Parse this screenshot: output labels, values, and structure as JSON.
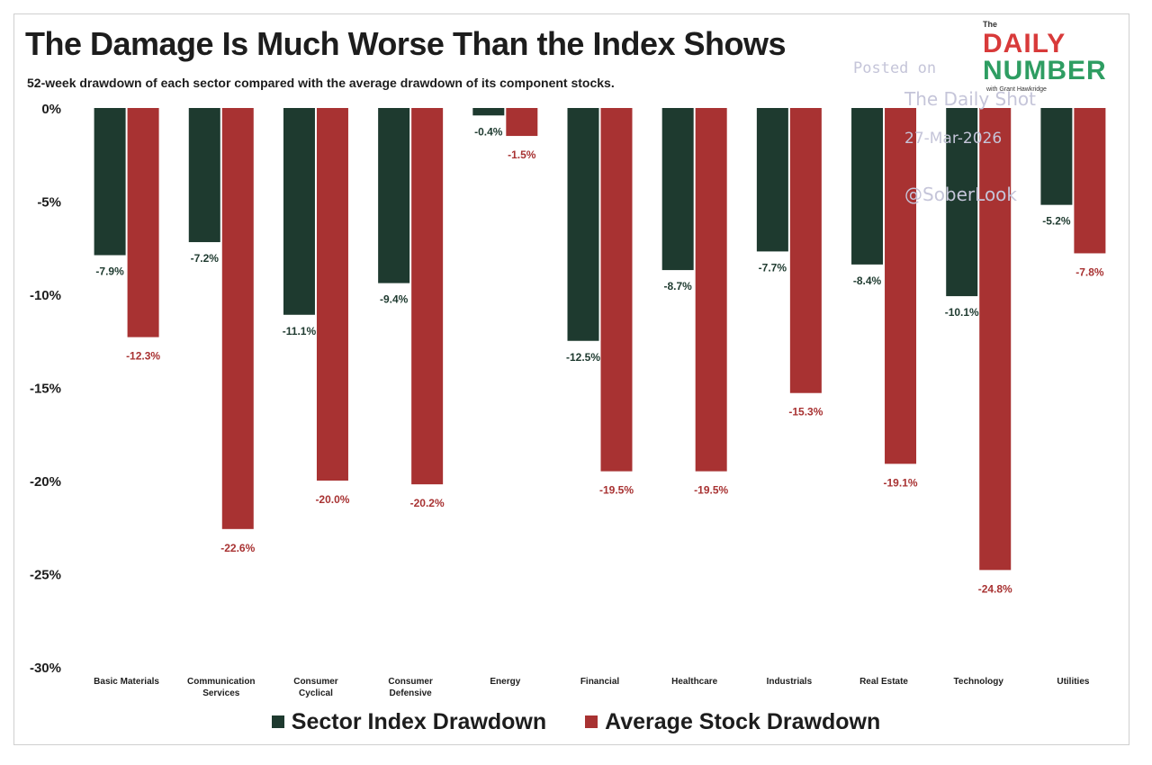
{
  "header": {
    "title": "The Damage Is Much Worse Than the Index Shows",
    "subtitle": "52-week drawdown of each sector compared with the average drawdown of its component stocks."
  },
  "logo": {
    "the": "The",
    "daily": "DAILY",
    "number": "NUMBER",
    "with": "with Grant Hawkridge"
  },
  "watermark": {
    "line1": "Posted on",
    "line2": "The Daily Shot",
    "line3": "27-Mar-2026",
    "line4": "@SoberLook"
  },
  "colors": {
    "sector": "#1e3a2f",
    "stock": "#a83232",
    "sector_label": "#1e3a2f",
    "stock_label": "#a83232"
  },
  "chart_data": {
    "type": "bar",
    "title": "The Damage Is Much Worse Than the Index Shows",
    "subtitle": "52-week drawdown of each sector compared with the average drawdown of its component stocks.",
    "xlabel": "",
    "ylabel": "",
    "ylim": [
      -30,
      0
    ],
    "yticks": [
      0,
      -5,
      -10,
      -15,
      -20,
      -25,
      -30
    ],
    "ytick_labels": [
      "0%",
      "-5%",
      "-10%",
      "-15%",
      "-20%",
      "-25%",
      "-30%"
    ],
    "grid": false,
    "legend_position": "bottom-center",
    "categories": [
      [
        "Basic Materials"
      ],
      [
        "Communication",
        "Services"
      ],
      [
        "Consumer",
        "Cyclical"
      ],
      [
        "Consumer",
        "Defensive"
      ],
      [
        "Energy"
      ],
      [
        "Financial"
      ],
      [
        "Healthcare"
      ],
      [
        "Industrials"
      ],
      [
        "Real Estate"
      ],
      [
        "Technology"
      ],
      [
        "Utilities"
      ]
    ],
    "series": [
      {
        "name": "Sector Index Drawdown",
        "values": [
          -7.9,
          -7.2,
          -11.1,
          -9.4,
          -0.4,
          -12.5,
          -8.7,
          -7.7,
          -8.4,
          -10.1,
          -5.2
        ],
        "labels": [
          "-7.9%",
          "-7.2%",
          "-11.1%",
          "-9.4%",
          "-0.4%",
          "-12.5%",
          "-8.7%",
          "-7.7%",
          "-8.4%",
          "-10.1%",
          "-5.2%"
        ]
      },
      {
        "name": "Average Stock Drawdown",
        "values": [
          -12.3,
          -22.6,
          -20.0,
          -20.2,
          -1.5,
          -19.5,
          -19.5,
          -15.3,
          -19.1,
          -24.8,
          -7.8
        ],
        "labels": [
          "-12.3%",
          "-22.6%",
          "-20.0%",
          "-20.2%",
          "-1.5%",
          "-19.5%",
          "-19.5%",
          "-15.3%",
          "-19.1%",
          "-24.8%",
          "-7.8%"
        ]
      }
    ]
  },
  "legend": {
    "sector": "Sector Index Drawdown",
    "stock": "Average Stock Drawdown"
  }
}
